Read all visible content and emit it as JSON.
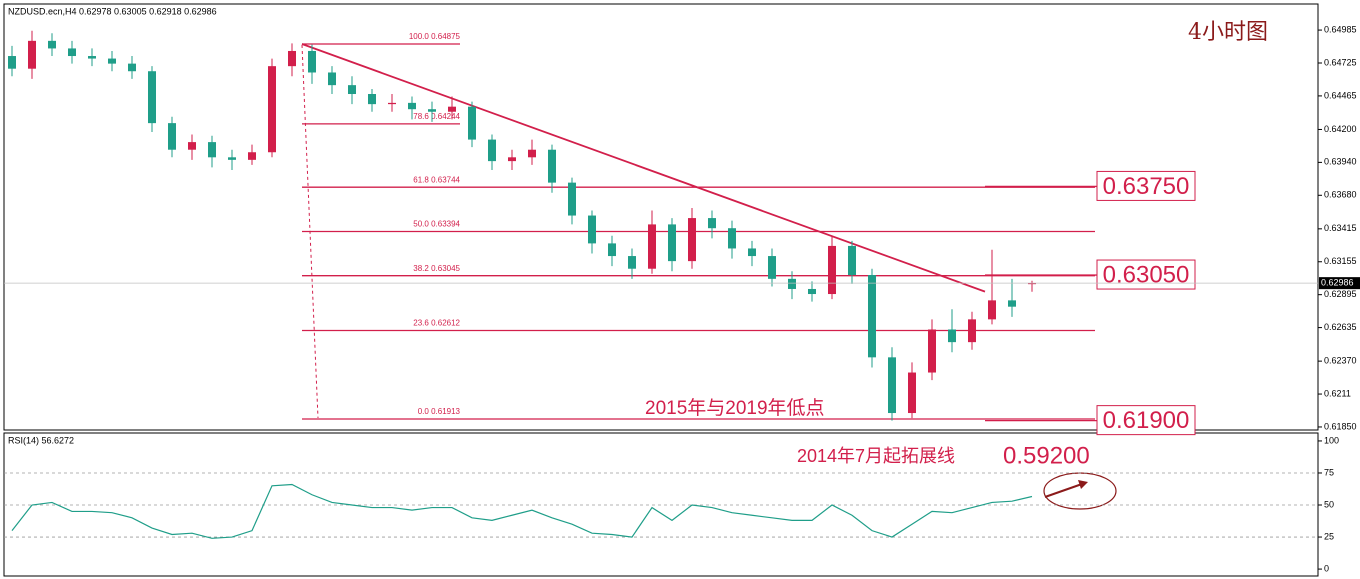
{
  "chart_data": [
    {
      "type": "candlestick",
      "title": "NZDUSD.ecn,H4  0.62978 0.63005 0.62918 0.62986",
      "annotations": [
        "4小时图",
        "2015年与2019年低点",
        "2014年7月起拓展线",
        "0.59200"
      ],
      "open": [
        0.6478,
        0.6468,
        0.649,
        0.6484,
        0.6478,
        0.6476,
        0.6472,
        0.6466,
        0.6425,
        0.6404,
        0.641,
        0.6398,
        0.6396,
        0.6402,
        0.647,
        0.6482,
        0.6465,
        0.6455,
        0.6448,
        0.644,
        0.6441,
        0.6436,
        0.6434,
        0.6438,
        0.6412,
        0.6395,
        0.6398,
        0.6404,
        0.6378,
        0.6352,
        0.633,
        0.632,
        0.631,
        0.6345,
        0.6316,
        0.635,
        0.6342,
        0.6326,
        0.632,
        0.6302,
        0.6294,
        0.629,
        0.6328,
        0.6305,
        0.624,
        0.6196,
        0.6228,
        0.6262,
        0.6252,
        0.627,
        0.6285,
        0.62978
      ],
      "high": [
        0.6486,
        0.6498,
        0.6496,
        0.649,
        0.6484,
        0.6482,
        0.6478,
        0.647,
        0.643,
        0.6416,
        0.6415,
        0.6404,
        0.6408,
        0.6476,
        0.6488,
        0.6487,
        0.647,
        0.6462,
        0.6452,
        0.6448,
        0.6446,
        0.6442,
        0.6446,
        0.6442,
        0.6416,
        0.6404,
        0.6412,
        0.6408,
        0.6382,
        0.6356,
        0.6336,
        0.6326,
        0.6356,
        0.635,
        0.6358,
        0.6356,
        0.6348,
        0.6332,
        0.6326,
        0.6308,
        0.63,
        0.6336,
        0.6332,
        0.631,
        0.6248,
        0.6236,
        0.627,
        0.6278,
        0.6276,
        0.6325,
        0.6302,
        0.63005
      ],
      "low": [
        0.6462,
        0.646,
        0.6478,
        0.6472,
        0.647,
        0.6466,
        0.646,
        0.6418,
        0.6398,
        0.6396,
        0.639,
        0.6388,
        0.6392,
        0.6398,
        0.6462,
        0.6456,
        0.6448,
        0.644,
        0.6434,
        0.6434,
        0.6428,
        0.6426,
        0.6428,
        0.6406,
        0.6388,
        0.6388,
        0.6392,
        0.637,
        0.6345,
        0.6322,
        0.6312,
        0.6302,
        0.6306,
        0.6308,
        0.631,
        0.6334,
        0.6318,
        0.6312,
        0.6296,
        0.6286,
        0.6284,
        0.6286,
        0.6298,
        0.6232,
        0.619,
        0.6192,
        0.6222,
        0.6244,
        0.6246,
        0.6266,
        0.6272,
        0.62918
      ],
      "close": [
        0.6468,
        0.649,
        0.6484,
        0.6478,
        0.6476,
        0.6472,
        0.6466,
        0.6425,
        0.6404,
        0.641,
        0.6398,
        0.6396,
        0.6402,
        0.647,
        0.6482,
        0.6465,
        0.6455,
        0.6448,
        0.644,
        0.6441,
        0.6436,
        0.6434,
        0.6438,
        0.6412,
        0.6395,
        0.6398,
        0.6404,
        0.6378,
        0.6352,
        0.633,
        0.632,
        0.631,
        0.6345,
        0.6316,
        0.635,
        0.6342,
        0.6326,
        0.632,
        0.6302,
        0.6294,
        0.629,
        0.6328,
        0.6305,
        0.624,
        0.6196,
        0.6228,
        0.6262,
        0.6252,
        0.627,
        0.6285,
        0.628,
        0.62986
      ],
      "up_color": "#d21f4b",
      "down_color": "#1f9e89",
      "ylim": [
        0.61826,
        0.65191
      ],
      "yticks": [
        0.64985,
        0.64725,
        0.64465,
        {
          "value": 0.642,
          "label": "0.64200"
        },
        {
          "value": 0.6394,
          "label": "0.63940"
        },
        {
          "value": 0.6368,
          "label": "0.63680"
        },
        0.63415,
        0.63155,
        0.62895,
        0.62635,
        {
          "value": 0.6237,
          "label": "0.62370"
        },
        0.6211,
        {
          "value": 0.6185,
          "label": "0.61850"
        }
      ],
      "last_price": 0.62986,
      "fib_levels": [
        {
          "value": 0.64875,
          "label": "100.0  0.64875"
        },
        {
          "value": 0.64244,
          "label": "78.6  0.64244"
        },
        {
          "value": 0.63744,
          "label": "61.8  0.63744"
        },
        {
          "value": 0.63394,
          "label": "50.0  0.63394"
        },
        {
          "value": 0.63045,
          "label": "38.2  0.63045"
        },
        {
          "value": 0.62612,
          "label": "23.6  0.62612"
        },
        {
          "value": 0.61913,
          "label": "0.0  0.61913"
        }
      ],
      "levels": [
        {
          "value": 0.6375,
          "label": "0.63750"
        },
        {
          "value": 0.6305,
          "label": "0.63050"
        },
        {
          "value": 0.619,
          "label": "0.61900"
        }
      ],
      "trendline": [
        0.64875,
        0.62919
      ],
      "line_color": "#d21f4b"
    },
    {
      "type": "line",
      "title": "RSI(14) 56.6272",
      "color": "#1f9e89",
      "values": [
        30,
        50,
        52,
        45,
        45,
        44,
        40,
        32,
        27,
        28,
        24,
        25,
        30,
        65,
        66,
        58,
        52,
        50,
        48,
        48,
        46,
        48,
        48,
        40,
        38,
        42,
        46,
        40,
        35,
        28,
        27,
        25,
        48,
        38,
        50,
        48,
        44,
        42,
        40,
        38,
        38,
        50,
        42,
        30,
        25,
        35,
        45,
        44,
        48,
        52,
        53,
        56.6272
      ],
      "ylim": [
        -5.4,
        106.2
      ],
      "yticks": [
        0,
        25,
        50,
        75,
        100
      ],
      "guides": [
        25,
        50,
        75
      ]
    }
  ]
}
